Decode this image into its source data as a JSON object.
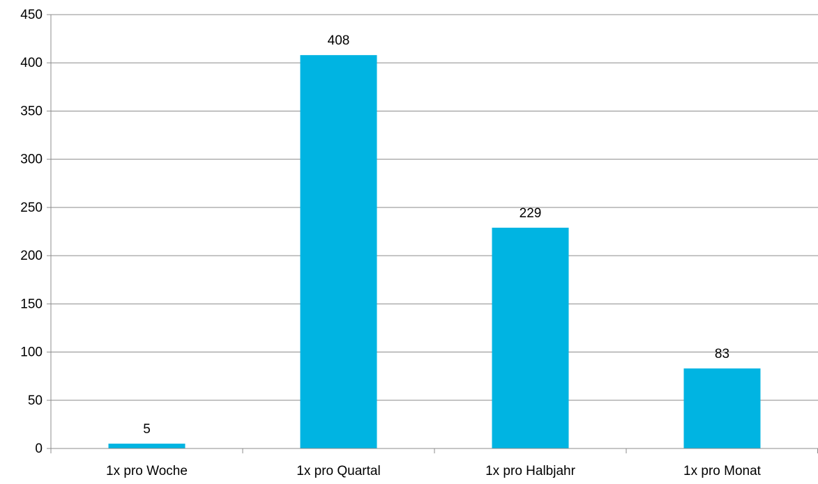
{
  "chart_data": {
    "type": "bar",
    "categories": [
      "1x pro Woche",
      "1x pro Quartal",
      "1x pro Halbjahr",
      "1x pro Monat"
    ],
    "values": [
      5,
      408,
      229,
      83
    ],
    "data_labels": [
      "5",
      "408",
      "229",
      "83"
    ],
    "ylim": [
      0,
      450
    ],
    "y_ticks": [
      0,
      50,
      100,
      150,
      200,
      250,
      300,
      350,
      400,
      450
    ],
    "grid": true,
    "legend": "none",
    "bar_color": "#00B4E2",
    "grid_color": "#8C8C8C"
  }
}
